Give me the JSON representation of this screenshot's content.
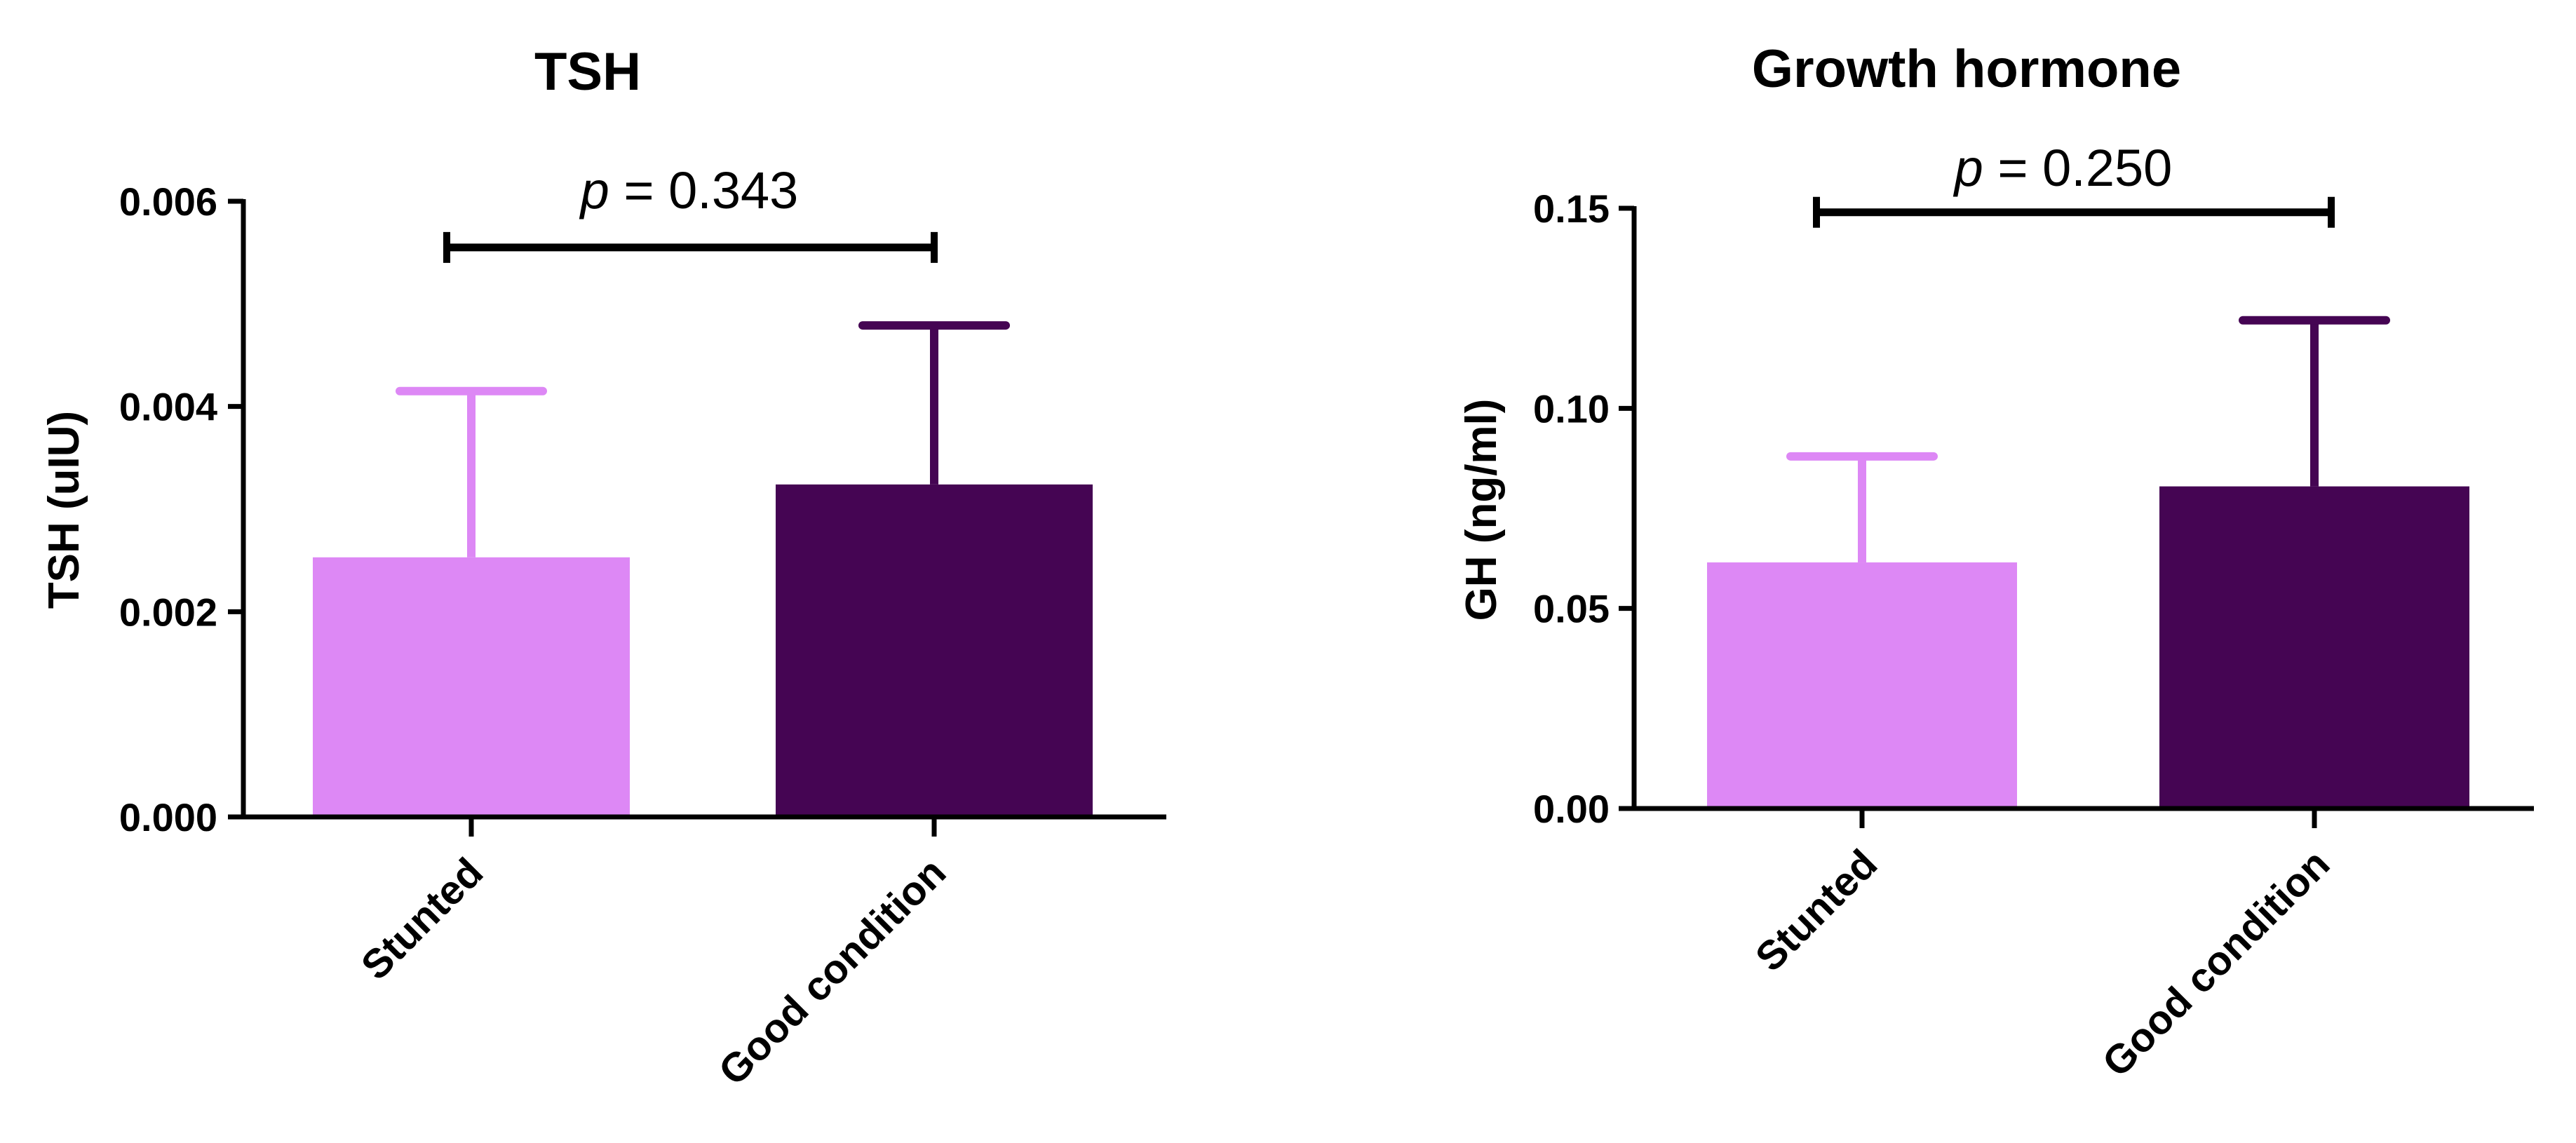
{
  "colors": {
    "stunted": "#DD88F5",
    "good_condition": "#450553",
    "axis": "#000000"
  },
  "chart_data": [
    {
      "type": "bar",
      "title": "TSH",
      "ylabel": "TSH (uIU)",
      "xlabel": "",
      "categories": [
        "Stunted",
        "Good condition"
      ],
      "values": [
        0.00253,
        0.00324
      ],
      "error_upper": [
        0.00415,
        0.00479
      ],
      "ylim": [
        0,
        0.006
      ],
      "yticks": [
        0.0,
        0.002,
        0.004,
        0.006
      ],
      "ytick_labels": [
        "0.000",
        "0.002",
        "0.004",
        "0.006"
      ],
      "comparison": {
        "p_symbol": "p",
        "p_text": " = 0.343",
        "bracket_y": 0.00555
      }
    },
    {
      "type": "bar",
      "title": "Growth hormone",
      "ylabel": "GH (ng/ml)",
      "xlabel": "",
      "categories": [
        "Stunted",
        "Good condition"
      ],
      "values": [
        0.0615,
        0.0805
      ],
      "error_upper": [
        0.088,
        0.122
      ],
      "ylim": [
        0,
        0.15
      ],
      "yticks": [
        0.0,
        0.05,
        0.1,
        0.15
      ],
      "ytick_labels": [
        "0.00",
        "0.05",
        "0.10",
        "0.15"
      ],
      "comparison": {
        "p_symbol": "p",
        "p_text": " = 0.250",
        "bracket_y": 0.149
      }
    }
  ]
}
